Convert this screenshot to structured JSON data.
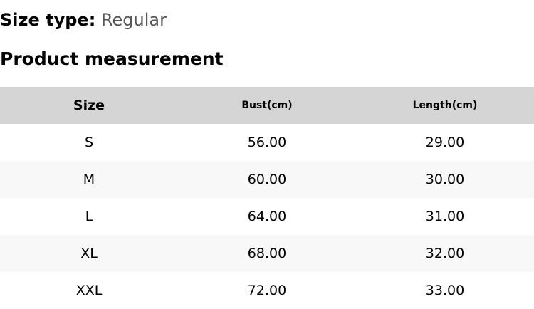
{
  "size_type": {
    "label": "Size type:",
    "value": "Regular"
  },
  "title": "Product measurement",
  "table": {
    "headers": [
      "Size",
      "Bust(cm)",
      "Length(cm)"
    ],
    "rows": [
      [
        "S",
        "56.00",
        "29.00"
      ],
      [
        "M",
        "60.00",
        "30.00"
      ],
      [
        "L",
        "64.00",
        "31.00"
      ],
      [
        "XL",
        "68.00",
        "32.00"
      ],
      [
        "XXL",
        "72.00",
        "33.00"
      ]
    ]
  }
}
